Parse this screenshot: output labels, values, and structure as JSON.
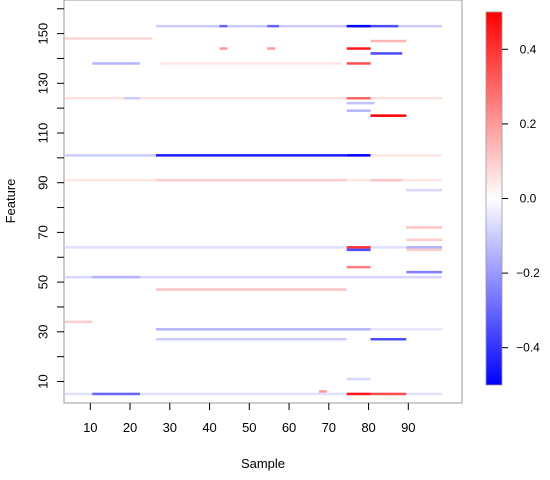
{
  "chart_data": {
    "type": "heatmap",
    "title": "",
    "xlabel": "Sample",
    "ylabel": "Feature",
    "xlim": [
      1,
      98
    ],
    "ylim": [
      1,
      160
    ],
    "x_ticks": [
      10,
      20,
      30,
      40,
      50,
      60,
      70,
      80,
      90
    ],
    "y_ticks": [
      10,
      30,
      50,
      70,
      90,
      110,
      130,
      150
    ],
    "y_minor_ticks": [
      20,
      40,
      60,
      80,
      100,
      120,
      140,
      160
    ],
    "colorbar": {
      "min": -0.5,
      "max": 0.5,
      "ticks": [
        0.4,
        0.2,
        0.0,
        -0.2,
        -0.4
      ],
      "tick_labels": [
        "0.4",
        "0.2",
        "0.0",
        "−0.2",
        "−0.4"
      ],
      "colors": [
        "#0000ff",
        "#ffffff",
        "#ff0000"
      ]
    },
    "cells": [
      {
        "y": 153,
        "x0": 27,
        "x1": 98,
        "v": -0.1
      },
      {
        "y": 153,
        "x0": 75,
        "x1": 80,
        "v": -0.5
      },
      {
        "y": 153,
        "x0": 81,
        "x1": 87,
        "v": -0.35
      },
      {
        "y": 153,
        "x0": 43,
        "x1": 44,
        "v": -0.3
      },
      {
        "y": 153,
        "x0": 55,
        "x1": 57,
        "v": -0.3
      },
      {
        "y": 148,
        "x0": 1,
        "x1": 25,
        "v": 0.08
      },
      {
        "y": 147,
        "x0": 81,
        "x1": 89,
        "v": 0.15
      },
      {
        "y": 144,
        "x0": 75,
        "x1": 80,
        "v": 0.45
      },
      {
        "y": 144,
        "x0": 43,
        "x1": 44,
        "v": 0.2
      },
      {
        "y": 144,
        "x0": 55,
        "x1": 56,
        "v": 0.2
      },
      {
        "y": 142,
        "x0": 81,
        "x1": 88,
        "v": -0.35
      },
      {
        "y": 138,
        "x0": 11,
        "x1": 22,
        "v": -0.15
      },
      {
        "y": 138,
        "x0": 75,
        "x1": 80,
        "v": 0.35
      },
      {
        "y": 138,
        "x0": 28,
        "x1": 73,
        "v": 0.05
      },
      {
        "y": 124,
        "x0": 2,
        "x1": 98,
        "v": 0.06
      },
      {
        "y": 124,
        "x0": 75,
        "x1": 80,
        "v": 0.3
      },
      {
        "y": 124,
        "x0": 19,
        "x1": 22,
        "v": -0.1
      },
      {
        "y": 122,
        "x0": 75,
        "x1": 81,
        "v": -0.12
      },
      {
        "y": 119,
        "x0": 75,
        "x1": 80,
        "v": -0.15
      },
      {
        "y": 117,
        "x0": 81,
        "x1": 89,
        "v": 0.5
      },
      {
        "y": 101,
        "x0": 27,
        "x1": 74,
        "v": -0.45
      },
      {
        "y": 101,
        "x0": 75,
        "x1": 80,
        "v": -0.5
      },
      {
        "y": 101,
        "x0": 3,
        "x1": 26,
        "v": -0.1
      },
      {
        "y": 101,
        "x0": 81,
        "x1": 98,
        "v": 0.05
      },
      {
        "y": 91,
        "x0": 2,
        "x1": 98,
        "v": 0.05
      },
      {
        "y": 91,
        "x0": 27,
        "x1": 74,
        "v": 0.1
      },
      {
        "y": 91,
        "x0": 81,
        "x1": 88,
        "v": 0.12
      },
      {
        "y": 87,
        "x0": 90,
        "x1": 98,
        "v": -0.08
      },
      {
        "y": 72,
        "x0": 90,
        "x1": 98,
        "v": 0.12
      },
      {
        "y": 67,
        "x0": 90,
        "x1": 98,
        "v": 0.1
      },
      {
        "y": 64,
        "x0": 2,
        "x1": 98,
        "v": -0.06
      },
      {
        "y": 64,
        "x0": 75,
        "x1": 80,
        "v": 0.4
      },
      {
        "y": 64,
        "x0": 90,
        "x1": 98,
        "v": -0.15
      },
      {
        "y": 63,
        "x0": 75,
        "x1": 80,
        "v": -0.35
      },
      {
        "y": 63,
        "x0": 90,
        "x1": 98,
        "v": 0.1
      },
      {
        "y": 56,
        "x0": 75,
        "x1": 80,
        "v": 0.25
      },
      {
        "y": 54,
        "x0": 90,
        "x1": 98,
        "v": -0.25
      },
      {
        "y": 52,
        "x0": 2,
        "x1": 98,
        "v": -0.08
      },
      {
        "y": 52,
        "x0": 11,
        "x1": 22,
        "v": -0.15
      },
      {
        "y": 47,
        "x0": 27,
        "x1": 74,
        "v": 0.12
      },
      {
        "y": 34,
        "x0": 1,
        "x1": 10,
        "v": 0.1
      },
      {
        "y": 31,
        "x0": 27,
        "x1": 80,
        "v": -0.15
      },
      {
        "y": 31,
        "x0": 81,
        "x1": 98,
        "v": -0.05
      },
      {
        "y": 27,
        "x0": 27,
        "x1": 74,
        "v": -0.1
      },
      {
        "y": 27,
        "x0": 81,
        "x1": 89,
        "v": -0.35
      },
      {
        "y": 11,
        "x0": 75,
        "x1": 80,
        "v": -0.08
      },
      {
        "y": 5,
        "x0": 2,
        "x1": 98,
        "v": -0.06
      },
      {
        "y": 5,
        "x0": 11,
        "x1": 22,
        "v": -0.3
      },
      {
        "y": 5,
        "x0": 75,
        "x1": 80,
        "v": 0.45
      },
      {
        "y": 5,
        "x0": 81,
        "x1": 89,
        "v": 0.35
      },
      {
        "y": 6,
        "x0": 68,
        "x1": 69,
        "v": 0.2
      }
    ]
  }
}
